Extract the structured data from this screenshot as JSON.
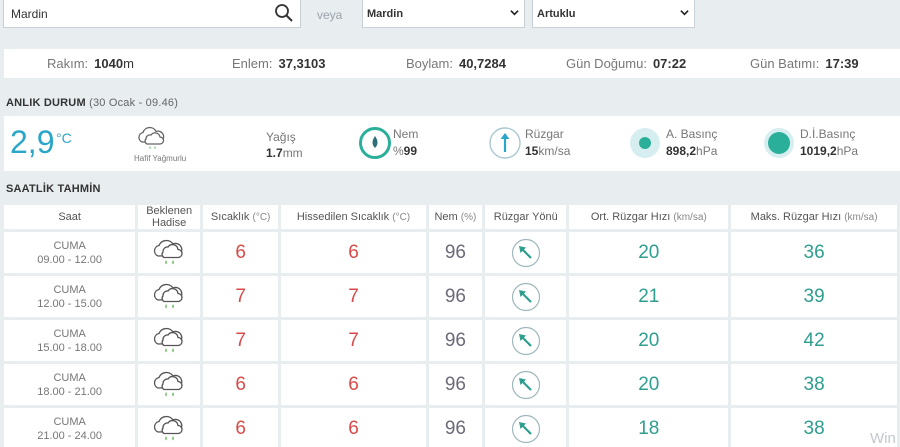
{
  "search": {
    "value": "Mardin"
  },
  "veya": "veya",
  "province_select": {
    "value": "Mardin"
  },
  "district_select": {
    "value": "Artuklu"
  },
  "info": {
    "rakim_label": "Rakım:",
    "rakim_value": "1040",
    "rakim_unit": "m",
    "enlem_label": "Enlem:",
    "enlem_value": "37,3103",
    "boylam_label": "Boylam:",
    "boylam_value": "40,7284",
    "gun_dogumu_label": "Gün Doğumu:",
    "gun_dogumu_value": "07:22",
    "gun_batimi_label": "Gün Batımı:",
    "gun_batimi_value": "17:39"
  },
  "current": {
    "title": "ANLIK DURUM",
    "date": "(30 Ocak - 09.46)",
    "temperature": "2,9",
    "temperature_unit": "°C",
    "condition_icon": "cloud-rain-icon",
    "condition": "Hafif Yağmurlu",
    "yagis_label": "Yağış",
    "yagis_value": "1.7",
    "yagis_unit": "mm",
    "nem_label": "Nem",
    "nem_prefix": "%",
    "nem_value": "99",
    "nem_fill": 0.99,
    "ruzgar_label": "Rüzgar",
    "ruzgar_value": "15",
    "ruzgar_unit": "km/sa",
    "a_basinc_label": "A. Basınç",
    "a_basinc_value": "898,2",
    "a_basinc_unit": "hPa",
    "di_basinc_label": "D.İ.Basınç",
    "di_basinc_value": "1019,2",
    "di_basinc_unit": "hPa",
    "colors": {
      "accent": "#2aa6c9",
      "teal": "#2ab09a",
      "temp": "#d94a4a"
    }
  },
  "hourly": {
    "title": "SAATLİK TAHMİN",
    "headers": {
      "saat": "Saat",
      "hadise_1": "Beklenen",
      "hadise_2": "Hadise",
      "sicaklik": "Sıcaklık",
      "sicaklik_unit": "(°C)",
      "hissedilen": "Hissedilen Sıcaklık",
      "hissedilen_unit": "(°C)",
      "nem": "Nem",
      "nem_unit": "(%)",
      "ruzgar_yonu": "Rüzgar Yönü",
      "ort": "Ort. Rüzgar Hızı",
      "ort_unit": "(km/sa)",
      "maks": "Maks. Rüzgar Hızı",
      "maks_unit": "(km/sa)"
    },
    "rows": [
      {
        "day": "CUMA",
        "time": "09.00 - 12.00",
        "icon": "cloud-rain-icon",
        "sicaklik": "6",
        "hissedilen": "6",
        "nem": "96",
        "wind_icon": "wind-direction-arrow-icon",
        "ort": "20",
        "maks": "36"
      },
      {
        "day": "CUMA",
        "time": "12.00 - 15.00",
        "icon": "cloud-rain-icon",
        "sicaklik": "7",
        "hissedilen": "7",
        "nem": "96",
        "wind_icon": "wind-direction-arrow-icon",
        "ort": "21",
        "maks": "39"
      },
      {
        "day": "CUMA",
        "time": "15.00 - 18.00",
        "icon": "cloud-rain-icon",
        "sicaklik": "7",
        "hissedilen": "7",
        "nem": "96",
        "wind_icon": "wind-direction-arrow-icon",
        "ort": "20",
        "maks": "42"
      },
      {
        "day": "CUMA",
        "time": "18.00 - 21.00",
        "icon": "cloud-rain-icon",
        "sicaklik": "6",
        "hissedilen": "6",
        "nem": "96",
        "wind_icon": "wind-direction-arrow-icon",
        "ort": "20",
        "maks": "38"
      },
      {
        "day": "CUMA",
        "time": "21.00 - 24.00",
        "icon": "cloud-rain-icon",
        "sicaklik": "6",
        "hissedilen": "6",
        "nem": "96",
        "wind_icon": "wind-direction-arrow-icon",
        "ort": "18",
        "maks": "38"
      }
    ]
  },
  "watermark": "Win"
}
